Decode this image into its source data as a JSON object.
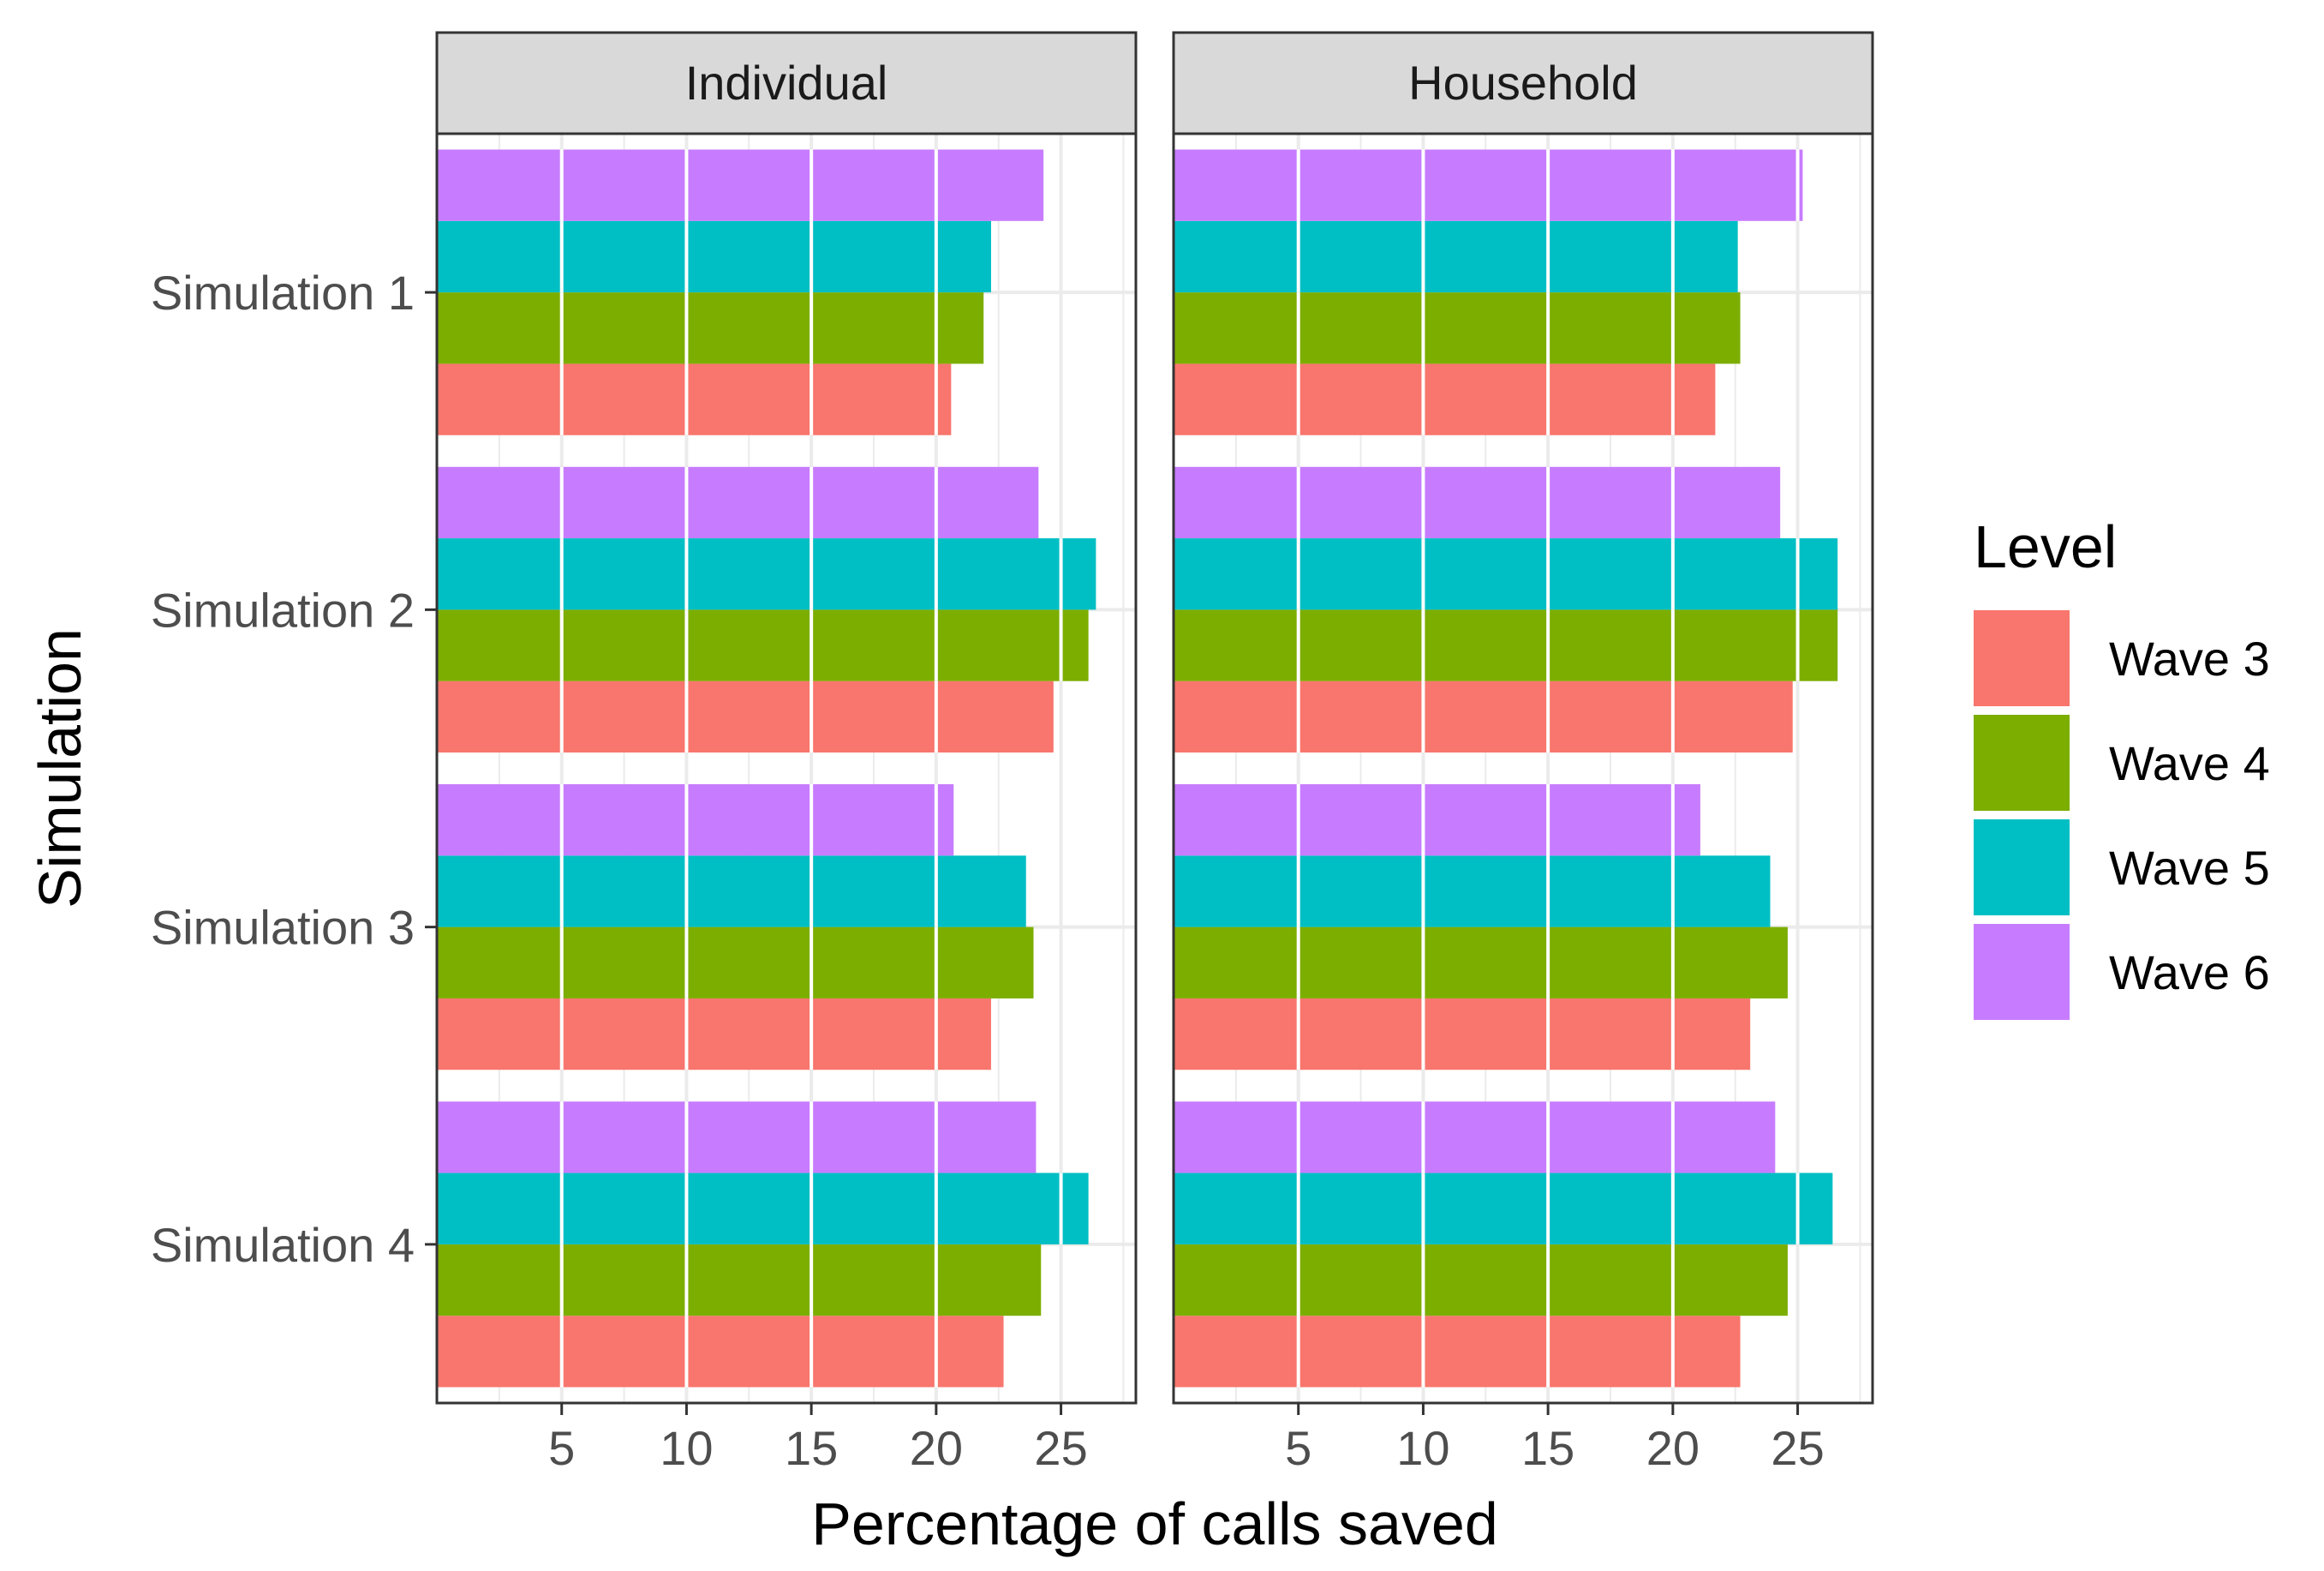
{
  "chart_data": {
    "type": "bar",
    "orientation": "horizontal",
    "facets": [
      "Individual",
      "Household"
    ],
    "categories": [
      "Simulation 1",
      "Simulation 2",
      "Simulation 3",
      "Simulation 4"
    ],
    "xlabel": "Percentage of calls saved",
    "ylabel": "Simulation",
    "xlim": [
      0,
      28
    ],
    "xticks": [
      5,
      10,
      15,
      20,
      25
    ],
    "grid": true,
    "legend": {
      "title": "Level",
      "position": "right",
      "entries": [
        "Wave 3",
        "Wave 4",
        "Wave 5",
        "Wave 6"
      ]
    },
    "colors": {
      "Wave 3": "#F8766D",
      "Wave 4": "#7CAE00",
      "Wave 5": "#00BFC4",
      "Wave 6": "#C77CFF"
    },
    "series": [
      {
        "name": "Wave 3",
        "values": {
          "Individual": [
            20.6,
            24.7,
            22.2,
            22.7
          ],
          "Household": [
            21.7,
            24.8,
            23.1,
            22.7
          ]
        }
      },
      {
        "name": "Wave 4",
        "values": {
          "Individual": [
            21.9,
            26.1,
            23.9,
            24.2
          ],
          "Household": [
            22.7,
            26.6,
            24.6,
            24.6
          ]
        }
      },
      {
        "name": "Wave 5",
        "values": {
          "Individual": [
            22.2,
            26.4,
            23.6,
            26.1
          ],
          "Household": [
            22.6,
            26.6,
            23.9,
            26.4
          ]
        }
      },
      {
        "name": "Wave 6",
        "values": {
          "Individual": [
            24.3,
            24.1,
            20.7,
            24.0
          ],
          "Household": [
            25.2,
            24.3,
            21.1,
            24.1
          ]
        }
      }
    ]
  }
}
